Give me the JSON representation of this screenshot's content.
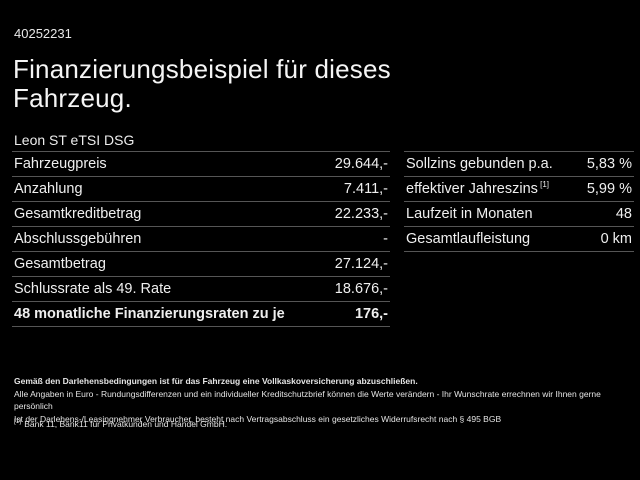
{
  "page": {
    "ref_number": "40252231",
    "title_line1": "Finanzierungsbeispiel für dieses",
    "title_line2": "Fahrzeug.",
    "vehicle_model": "Leon ST eTSI DSG"
  },
  "left_table": {
    "rows": [
      {
        "label": "Fahrzeugpreis",
        "value": "29.644,-",
        "bold": false
      },
      {
        "label": "Anzahlung",
        "value": "7.411,-",
        "bold": false
      },
      {
        "label": "Gesamtkreditbetrag",
        "value": "22.233,-",
        "bold": false
      },
      {
        "label": "Abschlussgebühren",
        "value": "-",
        "bold": false
      },
      {
        "label": "Gesamtbetrag",
        "value": "27.124,-",
        "bold": false
      },
      {
        "label": "Schlussrate als 49. Rate",
        "value": "18.676,-",
        "bold": false
      },
      {
        "label": "48 monatliche Finanzierungsraten zu je",
        "value": "176,-",
        "bold": true
      }
    ]
  },
  "right_table": {
    "rows": [
      {
        "label": "Sollzins gebunden p.a.",
        "value": "5,83 %",
        "bold": false
      },
      {
        "label": "effektiver Jahreszins",
        "sup": "[1]",
        "value": "5,99 %",
        "bold": false
      },
      {
        "label": "Laufzeit in Monaten",
        "value": "48",
        "bold": false
      },
      {
        "label": "Gesamtlaufleistung",
        "value": "0 km",
        "bold": false
      }
    ]
  },
  "fine_print": {
    "line1": "Gemäß den Darlehensbedingungen ist für das Fahrzeug eine Vollkaskoversicherung abzuschließen.",
    "line2": "Alle Angaben in Euro - Rundungsdifferenzen und ein individueller Kreditschutzbrief können die Werte verändern - Ihr Wunschrate errechnen wir Ihnen gerne persönlich",
    "line3": "Ist der Darlehens-/Leasingnehmer Verbraucher, besteht nach Vertragsabschluss ein gesetzliches Widerrufsrecht nach § 495 BGB",
    "footnote_marker": "[1]",
    "footnote_text": "Bank 11, Bank11 für Privatkunden und Handel GmbH."
  },
  "colors": {
    "background": "#000000",
    "text": "#f2f2f2",
    "divider": "#555555"
  }
}
